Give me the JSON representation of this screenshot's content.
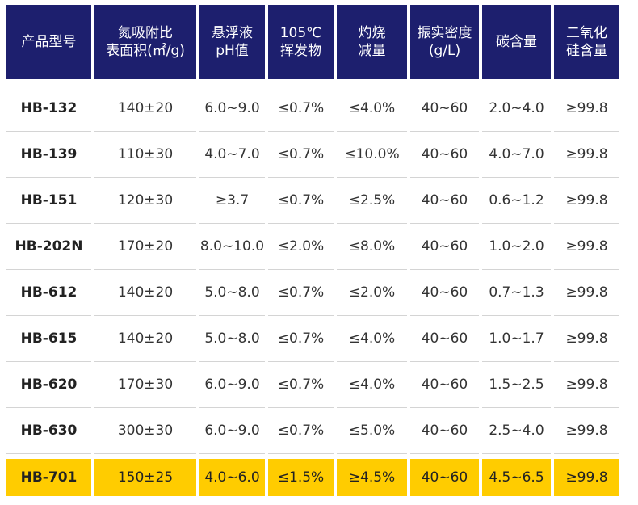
{
  "table": {
    "headers": [
      [
        "产品型号"
      ],
      [
        "氮吸附比",
        "表面积(㎡/g)"
      ],
      [
        "悬浮液",
        "pH值"
      ],
      [
        "105℃",
        "挥发物"
      ],
      [
        "灼烧",
        "减量"
      ],
      [
        "振实密度",
        "(g/L)"
      ],
      [
        "碳含量"
      ],
      [
        "二氧化",
        "硅含量"
      ]
    ],
    "rows": [
      [
        "HB-132",
        "140±20",
        "6.0~9.0",
        "≤0.7%",
        "≤4.0%",
        "40~60",
        "2.0~4.0",
        "≥99.8"
      ],
      [
        "HB-139",
        "110±30",
        "4.0~7.0",
        "≤0.7%",
        "≤10.0%",
        "40~60",
        "4.0~7.0",
        "≥99.8"
      ],
      [
        "HB-151",
        "120±30",
        "≥3.7",
        "≤0.7%",
        "≤2.5%",
        "40~60",
        "0.6~1.2",
        "≥99.8"
      ],
      [
        "HB-202N",
        "170±20",
        "8.0~10.0",
        "≤2.0%",
        "≤8.0%",
        "40~60",
        "1.0~2.0",
        "≥99.8"
      ],
      [
        "HB-612",
        "140±20",
        "5.0~8.0",
        "≤0.7%",
        "≤2.0%",
        "40~60",
        "0.7~1.3",
        "≥99.8"
      ],
      [
        "HB-615",
        "140±20",
        "5.0~8.0",
        "≤0.7%",
        "≤4.0%",
        "40~60",
        "1.0~1.7",
        "≥99.8"
      ],
      [
        "HB-620",
        "170±30",
        "6.0~9.0",
        "≤0.7%",
        "≤4.0%",
        "40~60",
        "1.5~2.5",
        "≥99.8"
      ],
      [
        "HB-630",
        "300±30",
        "6.0~9.0",
        "≤0.7%",
        "≤5.0%",
        "40~60",
        "2.5~4.0",
        "≥99.8"
      ]
    ],
    "highlight_row": [
      "HB-701",
      "150±25",
      "4.0~6.0",
      "≤1.5%",
      "≥4.5%",
      "40~60",
      "4.5~6.5",
      "≥99.8"
    ],
    "colors": {
      "header_bg": "#1d1f6e",
      "highlight_bg": "#ffcc00"
    }
  }
}
